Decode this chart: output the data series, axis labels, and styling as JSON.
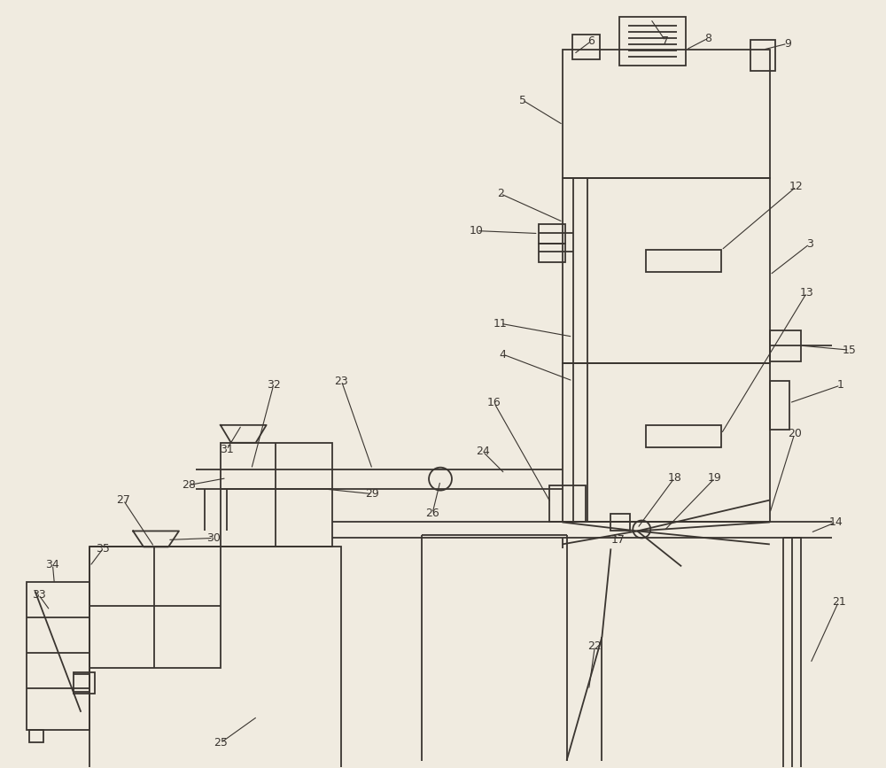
{
  "bg_color": "#f0ebe0",
  "line_color": "#3a3530",
  "lw": 1.3,
  "fig_w": 10.0,
  "fig_h": 8.67
}
